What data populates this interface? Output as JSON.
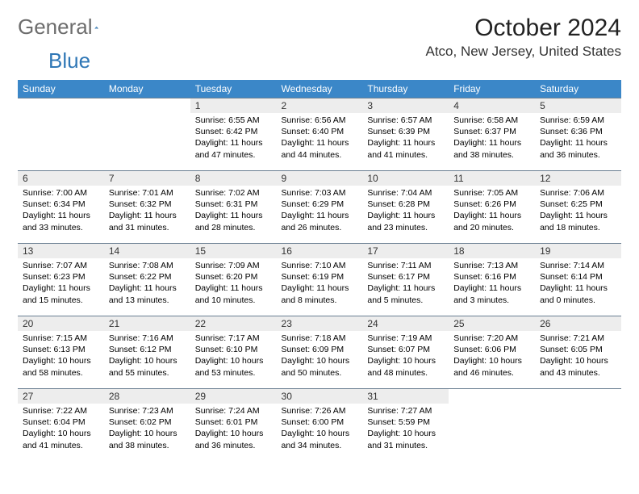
{
  "logo": {
    "part1": "General",
    "part2": "Blue"
  },
  "title": "October 2024",
  "location": "Atco, New Jersey, United States",
  "colors": {
    "header_bg": "#3b87c8",
    "header_text": "#ffffff",
    "daynum_bg": "#ededed",
    "border": "#6b7f92",
    "logo_gray": "#6d6d6d",
    "logo_blue": "#2f77b6",
    "page_bg": "#ffffff"
  },
  "weekdays": [
    "Sunday",
    "Monday",
    "Tuesday",
    "Wednesday",
    "Thursday",
    "Friday",
    "Saturday"
  ],
  "weeks": [
    [
      {
        "n": "",
        "sunrise": "",
        "sunset": "",
        "daylight": ""
      },
      {
        "n": "",
        "sunrise": "",
        "sunset": "",
        "daylight": ""
      },
      {
        "n": "1",
        "sunrise": "Sunrise: 6:55 AM",
        "sunset": "Sunset: 6:42 PM",
        "daylight": "Daylight: 11 hours and 47 minutes."
      },
      {
        "n": "2",
        "sunrise": "Sunrise: 6:56 AM",
        "sunset": "Sunset: 6:40 PM",
        "daylight": "Daylight: 11 hours and 44 minutes."
      },
      {
        "n": "3",
        "sunrise": "Sunrise: 6:57 AM",
        "sunset": "Sunset: 6:39 PM",
        "daylight": "Daylight: 11 hours and 41 minutes."
      },
      {
        "n": "4",
        "sunrise": "Sunrise: 6:58 AM",
        "sunset": "Sunset: 6:37 PM",
        "daylight": "Daylight: 11 hours and 38 minutes."
      },
      {
        "n": "5",
        "sunrise": "Sunrise: 6:59 AM",
        "sunset": "Sunset: 6:36 PM",
        "daylight": "Daylight: 11 hours and 36 minutes."
      }
    ],
    [
      {
        "n": "6",
        "sunrise": "Sunrise: 7:00 AM",
        "sunset": "Sunset: 6:34 PM",
        "daylight": "Daylight: 11 hours and 33 minutes."
      },
      {
        "n": "7",
        "sunrise": "Sunrise: 7:01 AM",
        "sunset": "Sunset: 6:32 PM",
        "daylight": "Daylight: 11 hours and 31 minutes."
      },
      {
        "n": "8",
        "sunrise": "Sunrise: 7:02 AM",
        "sunset": "Sunset: 6:31 PM",
        "daylight": "Daylight: 11 hours and 28 minutes."
      },
      {
        "n": "9",
        "sunrise": "Sunrise: 7:03 AM",
        "sunset": "Sunset: 6:29 PM",
        "daylight": "Daylight: 11 hours and 26 minutes."
      },
      {
        "n": "10",
        "sunrise": "Sunrise: 7:04 AM",
        "sunset": "Sunset: 6:28 PM",
        "daylight": "Daylight: 11 hours and 23 minutes."
      },
      {
        "n": "11",
        "sunrise": "Sunrise: 7:05 AM",
        "sunset": "Sunset: 6:26 PM",
        "daylight": "Daylight: 11 hours and 20 minutes."
      },
      {
        "n": "12",
        "sunrise": "Sunrise: 7:06 AM",
        "sunset": "Sunset: 6:25 PM",
        "daylight": "Daylight: 11 hours and 18 minutes."
      }
    ],
    [
      {
        "n": "13",
        "sunrise": "Sunrise: 7:07 AM",
        "sunset": "Sunset: 6:23 PM",
        "daylight": "Daylight: 11 hours and 15 minutes."
      },
      {
        "n": "14",
        "sunrise": "Sunrise: 7:08 AM",
        "sunset": "Sunset: 6:22 PM",
        "daylight": "Daylight: 11 hours and 13 minutes."
      },
      {
        "n": "15",
        "sunrise": "Sunrise: 7:09 AM",
        "sunset": "Sunset: 6:20 PM",
        "daylight": "Daylight: 11 hours and 10 minutes."
      },
      {
        "n": "16",
        "sunrise": "Sunrise: 7:10 AM",
        "sunset": "Sunset: 6:19 PM",
        "daylight": "Daylight: 11 hours and 8 minutes."
      },
      {
        "n": "17",
        "sunrise": "Sunrise: 7:11 AM",
        "sunset": "Sunset: 6:17 PM",
        "daylight": "Daylight: 11 hours and 5 minutes."
      },
      {
        "n": "18",
        "sunrise": "Sunrise: 7:13 AM",
        "sunset": "Sunset: 6:16 PM",
        "daylight": "Daylight: 11 hours and 3 minutes."
      },
      {
        "n": "19",
        "sunrise": "Sunrise: 7:14 AM",
        "sunset": "Sunset: 6:14 PM",
        "daylight": "Daylight: 11 hours and 0 minutes."
      }
    ],
    [
      {
        "n": "20",
        "sunrise": "Sunrise: 7:15 AM",
        "sunset": "Sunset: 6:13 PM",
        "daylight": "Daylight: 10 hours and 58 minutes."
      },
      {
        "n": "21",
        "sunrise": "Sunrise: 7:16 AM",
        "sunset": "Sunset: 6:12 PM",
        "daylight": "Daylight: 10 hours and 55 minutes."
      },
      {
        "n": "22",
        "sunrise": "Sunrise: 7:17 AM",
        "sunset": "Sunset: 6:10 PM",
        "daylight": "Daylight: 10 hours and 53 minutes."
      },
      {
        "n": "23",
        "sunrise": "Sunrise: 7:18 AM",
        "sunset": "Sunset: 6:09 PM",
        "daylight": "Daylight: 10 hours and 50 minutes."
      },
      {
        "n": "24",
        "sunrise": "Sunrise: 7:19 AM",
        "sunset": "Sunset: 6:07 PM",
        "daylight": "Daylight: 10 hours and 48 minutes."
      },
      {
        "n": "25",
        "sunrise": "Sunrise: 7:20 AM",
        "sunset": "Sunset: 6:06 PM",
        "daylight": "Daylight: 10 hours and 46 minutes."
      },
      {
        "n": "26",
        "sunrise": "Sunrise: 7:21 AM",
        "sunset": "Sunset: 6:05 PM",
        "daylight": "Daylight: 10 hours and 43 minutes."
      }
    ],
    [
      {
        "n": "27",
        "sunrise": "Sunrise: 7:22 AM",
        "sunset": "Sunset: 6:04 PM",
        "daylight": "Daylight: 10 hours and 41 minutes."
      },
      {
        "n": "28",
        "sunrise": "Sunrise: 7:23 AM",
        "sunset": "Sunset: 6:02 PM",
        "daylight": "Daylight: 10 hours and 38 minutes."
      },
      {
        "n": "29",
        "sunrise": "Sunrise: 7:24 AM",
        "sunset": "Sunset: 6:01 PM",
        "daylight": "Daylight: 10 hours and 36 minutes."
      },
      {
        "n": "30",
        "sunrise": "Sunrise: 7:26 AM",
        "sunset": "Sunset: 6:00 PM",
        "daylight": "Daylight: 10 hours and 34 minutes."
      },
      {
        "n": "31",
        "sunrise": "Sunrise: 7:27 AM",
        "sunset": "Sunset: 5:59 PM",
        "daylight": "Daylight: 10 hours and 31 minutes."
      },
      {
        "n": "",
        "sunrise": "",
        "sunset": "",
        "daylight": ""
      },
      {
        "n": "",
        "sunrise": "",
        "sunset": "",
        "daylight": ""
      }
    ]
  ]
}
